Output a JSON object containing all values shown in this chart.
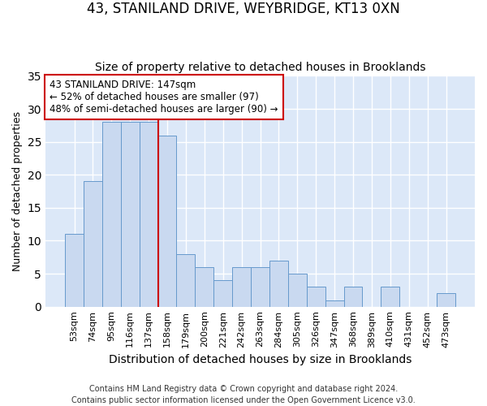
{
  "title": "43, STANILAND DRIVE, WEYBRIDGE, KT13 0XN",
  "subtitle": "Size of property relative to detached houses in Brooklands",
  "xlabel": "Distribution of detached houses by size in Brooklands",
  "ylabel": "Number of detached properties",
  "categories": [
    "53sqm",
    "74sqm",
    "95sqm",
    "116sqm",
    "137sqm",
    "158sqm",
    "179sqm",
    "200sqm",
    "221sqm",
    "242sqm",
    "263sqm",
    "284sqm",
    "305sqm",
    "326sqm",
    "347sqm",
    "368sqm",
    "389sqm",
    "410sqm",
    "431sqm",
    "452sqm",
    "473sqm"
  ],
  "values": [
    11,
    19,
    28,
    28,
    28,
    26,
    8,
    6,
    4,
    6,
    6,
    7,
    5,
    3,
    1,
    3,
    0,
    3,
    0,
    0,
    2
  ],
  "bar_color": "#c9d9f0",
  "bar_edge_color": "#6699cc",
  "property_line_x": 4.5,
  "property_line_color": "#cc0000",
  "annotation_text": "43 STANILAND DRIVE: 147sqm\n← 52% of detached houses are smaller (97)\n48% of semi-detached houses are larger (90) →",
  "annotation_box_color": "#ffffff",
  "annotation_box_edge": "#cc0000",
  "footer": "Contains HM Land Registry data © Crown copyright and database right 2024.\nContains public sector information licensed under the Open Government Licence v3.0.",
  "ylim": [
    0,
    35
  ],
  "yticks": [
    0,
    5,
    10,
    15,
    20,
    25,
    30,
    35
  ],
  "fig_background": "#ffffff",
  "plot_background": "#dce8f8",
  "grid_color": "#ffffff",
  "title_fontsize": 12,
  "subtitle_fontsize": 10,
  "xlabel_fontsize": 10,
  "ylabel_fontsize": 9,
  "tick_fontsize": 8,
  "footer_fontsize": 7
}
